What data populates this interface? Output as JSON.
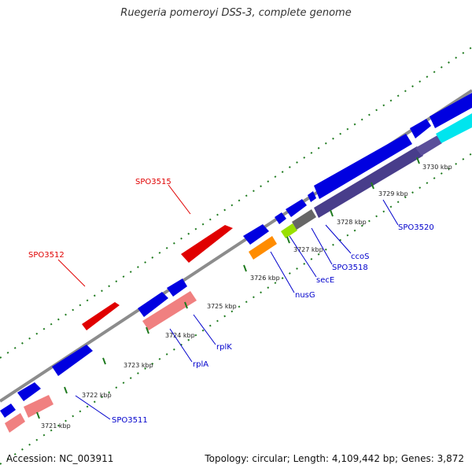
{
  "title": "Ruegeria pomeroyi DSS-3, complete genome",
  "footer": {
    "accession": "Accession: NC_003911",
    "summary": "Topology: circular; Length: 4,109,442 bp; Genes: 3,872"
  },
  "ticks": [
    {
      "label": "3721 kbp"
    },
    {
      "label": "3722 kbp"
    },
    {
      "label": "3723 kbp"
    },
    {
      "label": "3724 kbp"
    },
    {
      "label": "3725 kbp"
    },
    {
      "label": "3726 kbp"
    },
    {
      "label": "3727 kbp"
    },
    {
      "label": "3728 kbp"
    },
    {
      "label": "3729 kbp"
    },
    {
      "label": "3730 kbp"
    }
  ],
  "gene_labels": [
    {
      "name": "SPO3512",
      "color": "#e00000"
    },
    {
      "name": "SPO3515",
      "color": "#e00000"
    },
    {
      "name": "SPO3511",
      "color": "#0000cc"
    },
    {
      "name": "rplA",
      "color": "#0000cc"
    },
    {
      "name": "rplK",
      "color": "#0000cc"
    },
    {
      "name": "nusG",
      "color": "#0000cc"
    },
    {
      "name": "secE",
      "color": "#0000cc"
    },
    {
      "name": "SPO3518",
      "color": "#0000cc"
    },
    {
      "name": "ccoS",
      "color": "#0000cc"
    },
    {
      "name": "SPO3520",
      "color": "#0000cc"
    }
  ],
  "colors": {
    "backbone": "#8c8c8c",
    "dots": "#1e7a1e",
    "forward_cds": "#e00000",
    "reverse_cds": "#0000e0",
    "rrna": "#f08080",
    "orange": "#ff8c00",
    "green": "#99e000",
    "gray": "#666666",
    "slate": "#483d8b",
    "cyan": "#00e5ee"
  }
}
